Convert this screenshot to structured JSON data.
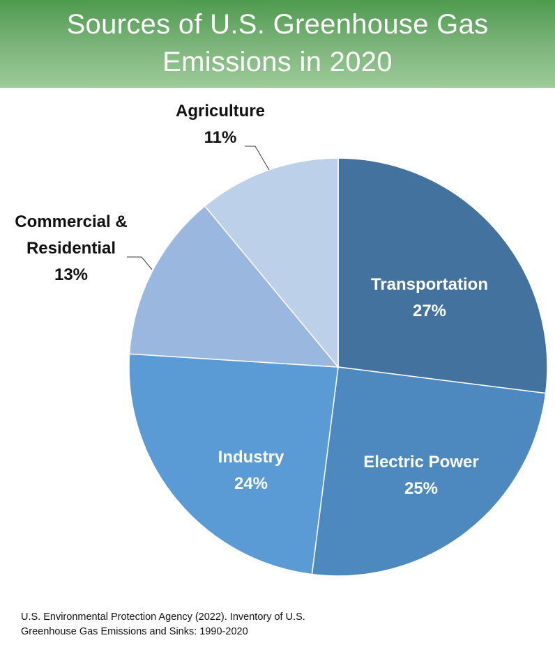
{
  "chart_data": {
    "type": "pie",
    "title_lines": [
      "Sources of U.S. Greenhouse Gas",
      "Emissions in 2020"
    ],
    "slices": [
      {
        "label_lines": [
          "Transportation"
        ],
        "value": 27,
        "value_label": "27%",
        "color": "#44729e",
        "label_color": "#ffffff",
        "label_placement": "inside"
      },
      {
        "label_lines": [
          "Electric Power"
        ],
        "value": 25,
        "value_label": "25%",
        "color": "#4d89bf",
        "label_color": "#ffffff",
        "label_placement": "inside"
      },
      {
        "label_lines": [
          "Industry"
        ],
        "value": 24,
        "value_label": "24%",
        "color": "#5b9bd5",
        "label_color": "#ffffff",
        "label_placement": "inside"
      },
      {
        "label_lines": [
          "Commercial &",
          "Residential"
        ],
        "value": 13,
        "value_label": "13%",
        "color": "#9ab8df",
        "label_color": "#111111",
        "label_placement": "outside"
      },
      {
        "label_lines": [
          "Agriculture"
        ],
        "value": 11,
        "value_label": "11%",
        "color": "#bdd0ea",
        "label_color": "#111111",
        "label_placement": "outside"
      }
    ],
    "start": "12 o'clock",
    "direction": "clockwise"
  },
  "source_lines": [
    "U.S. Environmental Protection Agency (2022). Inventory of U.S.",
    "Greenhouse Gas Emissions and Sinks: 1990-2020"
  ]
}
